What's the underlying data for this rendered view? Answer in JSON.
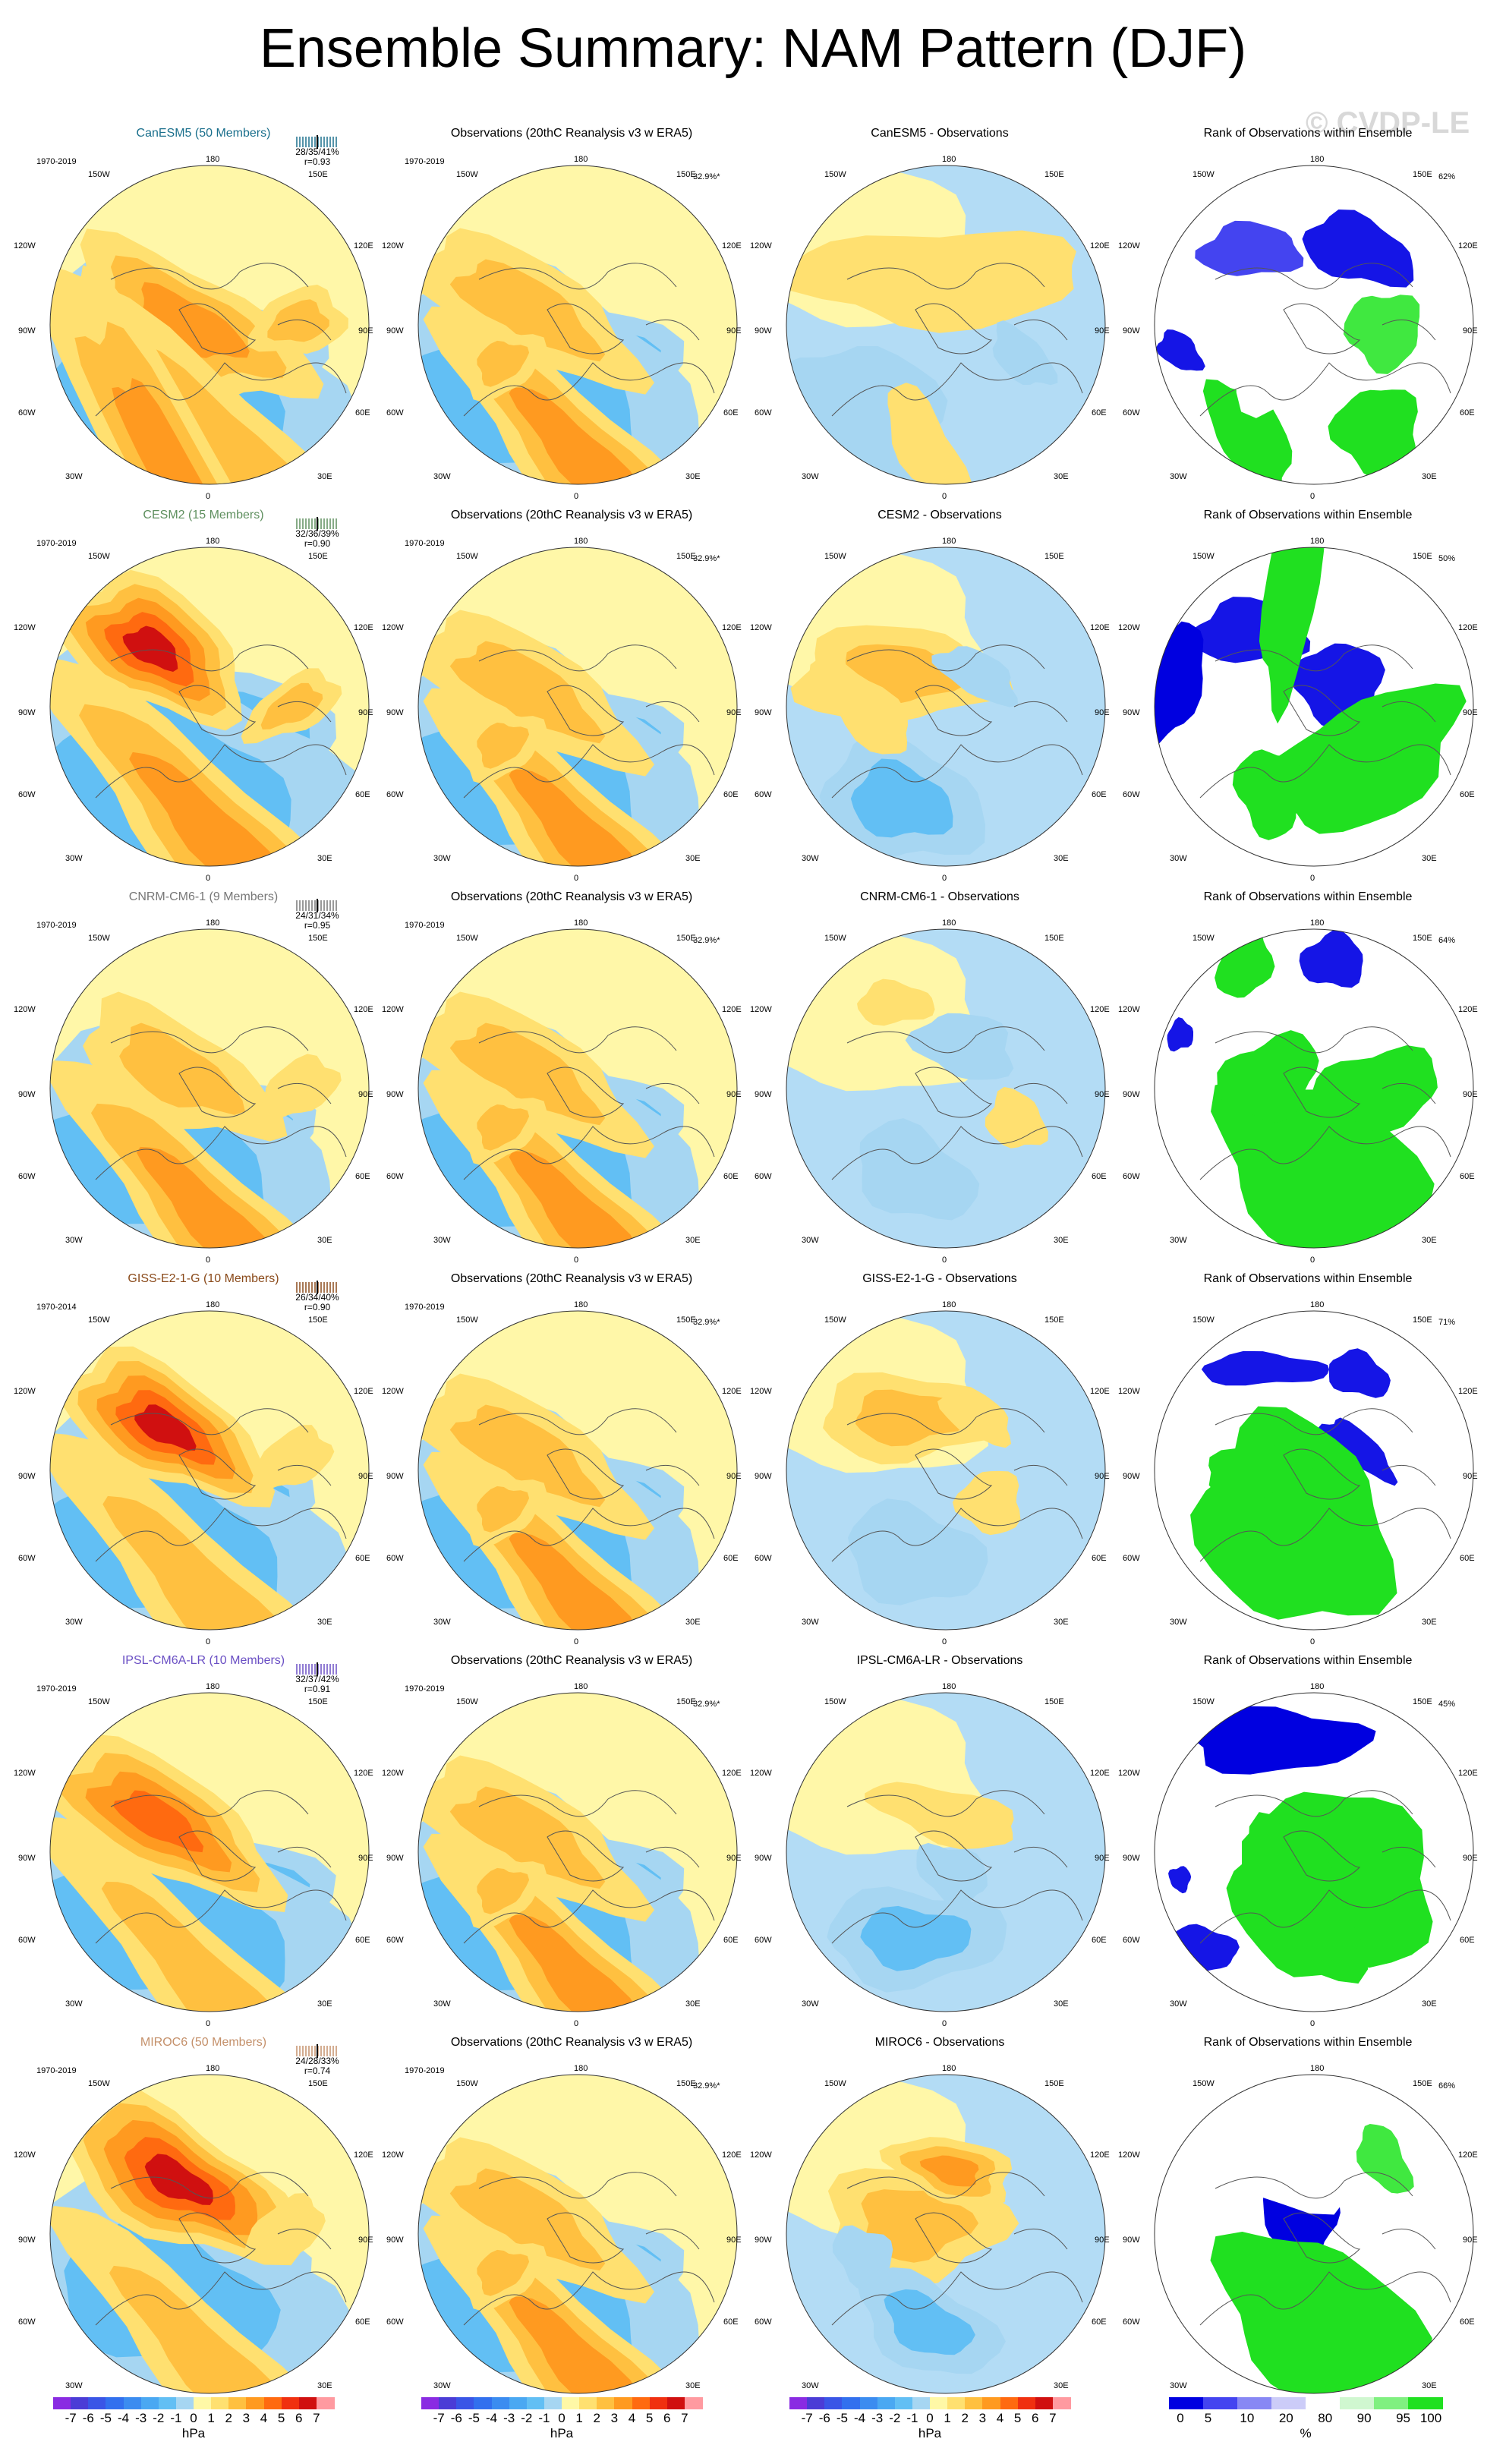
{
  "title": "Ensemble Summary: NAM Pattern (DJF)",
  "watermark": "© CVDP-LE",
  "longitude_labels": [
    "180",
    "150W",
    "150E",
    "120W",
    "120E",
    "90W",
    "90E",
    "60W",
    "60E",
    "30W",
    "30E",
    "0"
  ],
  "obs_title": "Observations (20thC Reanalysis v3 w ERA5)",
  "obs_period": "1970-2019",
  "obs_variance": "32.9%*",
  "rank_title": "Rank of Observations within Ensemble",
  "rows": [
    {
      "model_title": "CanESM5 (50 Members)",
      "model_color": "#1a6f8c",
      "period": "1970-2019",
      "stats": "28/35/41%",
      "r": "r=0.93",
      "diff_title": "CanESM5 - Observations",
      "rank_pct": "62%",
      "model_field": [
        [
          "n",
          125,
          200,
          95,
          70,
          4
        ],
        [
          "n",
          90,
          220,
          150,
          110,
          2
        ],
        [
          "p",
          110,
          150,
          105,
          50,
          3
        ],
        [
          "p",
          125,
          255,
          170,
          55,
          2
        ],
        [
          "p",
          95,
          285,
          190,
          45,
          3
        ],
        [
          "p",
          195,
          148,
          25,
          45,
          2
        ]
      ],
      "obs_field": [
        [
          "n",
          125,
          205,
          85,
          70,
          4
        ],
        [
          "n",
          80,
          220,
          150,
          115,
          2
        ],
        [
          "p",
          85,
          135,
          100,
          45,
          2
        ],
        [
          "p",
          125,
          270,
          150,
          50,
          3
        ],
        [
          "p",
          65,
          185,
          25,
          40,
          2
        ]
      ],
      "diff_field": [
        [
          "p",
          120,
          105,
          115,
          45,
          1
        ],
        [
          "p",
          95,
          110,
          30,
          20,
          1
        ],
        [
          "n",
          60,
          235,
          65,
          65,
          1
        ],
        [
          "n",
          185,
          180,
          30,
          20,
          1
        ],
        [
          "p",
          110,
          265,
          55,
          25,
          1
        ]
      ],
      "rank_field": [
        [
          "b",
          75,
          80,
          40,
          25,
          2
        ],
        [
          "b",
          160,
          80,
          45,
          30,
          3
        ],
        [
          "b",
          20,
          175,
          20,
          15,
          3
        ],
        [
          "g",
          75,
          255,
          50,
          30,
          4
        ],
        [
          "g",
          175,
          250,
          35,
          40,
          4
        ],
        [
          "g",
          180,
          155,
          30,
          35,
          3
        ],
        [
          "w",
          100,
          165,
          55,
          50,
          0
        ]
      ]
    },
    {
      "model_title": "CESM2 (15 Members)",
      "model_color": "#5e8f5e",
      "period": "1970-2019",
      "stats": "32/36/39%",
      "r": "r=0.90",
      "diff_title": "CESM2 - Observations",
      "rank_pct": "50%",
      "model_field": [
        [
          "n",
          130,
          200,
          100,
          80,
          4
        ],
        [
          "n",
          90,
          225,
          160,
          115,
          2
        ],
        [
          "p",
          80,
          95,
          80,
          55,
          5
        ],
        [
          "p",
          125,
          265,
          175,
          55,
          3
        ],
        [
          "p",
          190,
          150,
          20,
          50,
          2
        ]
      ],
      "obs_field": [
        [
          "n",
          125,
          205,
          85,
          70,
          4
        ],
        [
          "n",
          80,
          220,
          150,
          115,
          2
        ],
        [
          "p",
          85,
          135,
          100,
          45,
          2
        ],
        [
          "p",
          125,
          270,
          150,
          50,
          3
        ],
        [
          "p",
          65,
          185,
          25,
          40,
          2
        ]
      ],
      "diff_field": [
        [
          "p",
          85,
          120,
          80,
          45,
          2
        ],
        [
          "n",
          90,
          240,
          65,
          55,
          2
        ],
        [
          "n",
          150,
          120,
          35,
          20,
          1
        ],
        [
          "p",
          60,
          150,
          50,
          25,
          1
        ]
      ],
      "rank_field": [
        [
          "b",
          75,
          80,
          45,
          30,
          3
        ],
        [
          "b",
          15,
          130,
          20,
          60,
          4
        ],
        [
          "b",
          145,
          130,
          35,
          40,
          3
        ],
        [
          "g",
          165,
          200,
          45,
          100,
          4
        ],
        [
          "g",
          90,
          230,
          35,
          30,
          4
        ],
        [
          "g",
          110,
          30,
          100,
          25,
          4
        ]
      ]
    },
    {
      "model_title": "CNRM-CM6-1 (9 Members)",
      "model_color": "#777777",
      "period": "1970-2019",
      "stats": "24/31/34%",
      "r": "r=0.95",
      "diff_title": "CNRM-CM6-1 - Observations",
      "rank_pct": "64%",
      "model_field": [
        [
          "n",
          125,
          210,
          85,
          70,
          4
        ],
        [
          "n",
          80,
          220,
          150,
          110,
          2
        ],
        [
          "p",
          100,
          135,
          85,
          45,
          2
        ],
        [
          "p",
          125,
          270,
          160,
          50,
          3
        ],
        [
          "p",
          195,
          150,
          20,
          40,
          1
        ]
      ],
      "obs_field": [
        [
          "n",
          125,
          205,
          85,
          70,
          4
        ],
        [
          "n",
          80,
          220,
          150,
          115,
          2
        ],
        [
          "p",
          85,
          135,
          100,
          45,
          2
        ],
        [
          "p",
          125,
          270,
          150,
          50,
          3
        ],
        [
          "p",
          65,
          185,
          25,
          40,
          2
        ]
      ],
      "diff_field": [
        [
          "p",
          85,
          70,
          30,
          20,
          1
        ],
        [
          "n",
          140,
          110,
          40,
          30,
          1
        ],
        [
          "n",
          100,
          230,
          50,
          40,
          1
        ],
        [
          "p",
          180,
          180,
          25,
          25,
          1
        ]
      ],
      "rank_field": [
        [
          "b",
          140,
          30,
          25,
          25,
          3
        ],
        [
          "b",
          20,
          100,
          10,
          15,
          3
        ],
        [
          "g",
          130,
          230,
          90,
          75,
          4
        ],
        [
          "g",
          90,
          140,
          30,
          50,
          4
        ],
        [
          "g",
          175,
          150,
          30,
          60,
          4
        ],
        [
          "g",
          70,
          30,
          30,
          25,
          4
        ]
      ]
    },
    {
      "model_title": "GISS-E2-1-G (10 Members)",
      "model_color": "#8a4a1a",
      "period": "1970-2014",
      "stats": "26/34/40%",
      "r": "r=0.90",
      "diff_title": "GISS-E2-1-G - Observations",
      "rank_pct": "71%",
      "model_field": [
        [
          "n",
          120,
          200,
          85,
          70,
          4
        ],
        [
          "n",
          85,
          220,
          155,
          110,
          2
        ],
        [
          "p",
          90,
          110,
          90,
          50,
          5
        ],
        [
          "p",
          125,
          270,
          170,
          50,
          2
        ],
        [
          "p",
          190,
          140,
          20,
          40,
          1
        ]
      ],
      "obs_field": [
        [
          "n",
          125,
          205,
          85,
          70,
          4
        ],
        [
          "n",
          80,
          220,
          150,
          115,
          2
        ],
        [
          "p",
          85,
          135,
          100,
          45,
          2
        ],
        [
          "p",
          125,
          270,
          150,
          50,
          3
        ],
        [
          "p",
          65,
          185,
          25,
          40,
          2
        ]
      ],
      "diff_field": [
        [
          "p",
          95,
          100,
          70,
          40,
          2
        ],
        [
          "n",
          100,
          230,
          55,
          45,
          1
        ],
        [
          "p",
          150,
          100,
          30,
          20,
          1
        ],
        [
          "p",
          160,
          180,
          25,
          30,
          1
        ]
      ],
      "rank_field": [
        [
          "b",
          85,
          55,
          50,
          15,
          3
        ],
        [
          "b",
          160,
          60,
          25,
          20,
          3
        ],
        [
          "b",
          160,
          130,
          35,
          15,
          3
        ],
        [
          "g",
          110,
          200,
          85,
          85,
          4
        ],
        [
          "g",
          80,
          150,
          20,
          50,
          4
        ]
      ]
    },
    {
      "model_title": "IPSL-CM6A-LR (10 Members)",
      "model_color": "#6a4fc4",
      "period": "1970-2019",
      "stats": "32/37/42%",
      "r": "r=0.91",
      "diff_title": "IPSL-CM6A-LR - Observations",
      "rank_pct": "45%",
      "model_field": [
        [
          "n",
          130,
          210,
          100,
          70,
          4
        ],
        [
          "n",
          85,
          220,
          165,
          110,
          2
        ],
        [
          "p",
          85,
          120,
          105,
          50,
          4
        ],
        [
          "p",
          125,
          275,
          175,
          45,
          2
        ]
      ],
      "obs_field": [
        [
          "n",
          125,
          205,
          85,
          70,
          4
        ],
        [
          "n",
          80,
          220,
          150,
          115,
          2
        ],
        [
          "p",
          85,
          135,
          100,
          45,
          2
        ],
        [
          "p",
          125,
          270,
          150,
          50,
          3
        ],
        [
          "p",
          65,
          185,
          25,
          40,
          2
        ]
      ],
      "diff_field": [
        [
          "n",
          100,
          230,
          70,
          45,
          2
        ],
        [
          "p",
          125,
          115,
          60,
          25,
          1
        ],
        [
          "n",
          130,
          170,
          30,
          25,
          1
        ]
      ],
      "rank_field": [
        [
          "b",
          95,
          45,
          70,
          30,
          4
        ],
        [
          "b",
          40,
          240,
          25,
          20,
          3
        ],
        [
          "g",
          150,
          170,
          80,
          70,
          4
        ],
        [
          "g",
          110,
          200,
          70,
          50,
          4
        ],
        [
          "b",
          20,
          175,
          10,
          10,
          3
        ]
      ]
    },
    {
      "model_title": "MIROC6 (50 Members)",
      "model_color": "#c4906a",
      "period": "1970-2019",
      "stats": "24/28/33%",
      "r": "r=0.74",
      "diff_title": "MIROC6 - Observations",
      "rank_pct": "66%",
      "model_field": [
        [
          "n",
          130,
          205,
          80,
          60,
          3
        ],
        [
          "n",
          90,
          210,
          140,
          100,
          2
        ],
        [
          "p",
          100,
          100,
          105,
          55,
          5
        ],
        [
          "p",
          125,
          270,
          160,
          45,
          2
        ],
        [
          "p",
          185,
          145,
          20,
          40,
          1
        ]
      ],
      "obs_field": [
        [
          "n",
          125,
          205,
          85,
          70,
          4
        ],
        [
          "n",
          80,
          220,
          150,
          115,
          2
        ],
        [
          "p",
          85,
          135,
          100,
          45,
          2
        ],
        [
          "p",
          125,
          270,
          150,
          50,
          3
        ],
        [
          "p",
          65,
          185,
          25,
          40,
          2
        ]
      ],
      "diff_field": [
        [
          "p",
          100,
          140,
          70,
          55,
          2
        ],
        [
          "p",
          130,
          90,
          50,
          30,
          3
        ],
        [
          "n",
          110,
          235,
          60,
          40,
          2
        ],
        [
          "n",
          60,
          170,
          25,
          25,
          1
        ]
      ],
      "rank_field": [
        [
          "b",
          115,
          130,
          30,
          45,
          4
        ],
        [
          "w",
          80,
          80,
          70,
          40,
          0
        ],
        [
          "g",
          130,
          235,
          90,
          70,
          4
        ],
        [
          "g",
          180,
          80,
          30,
          20,
          3
        ]
      ]
    }
  ],
  "colorbar_hpa": {
    "labels": [
      "-7",
      "-6",
      "-5",
      "-4",
      "-3",
      "-2",
      "-1",
      "0",
      "1",
      "2",
      "3",
      "4",
      "5",
      "6",
      "7"
    ],
    "unit": "hPa",
    "colors": [
      "#8a2be2",
      "#4b3cd6",
      "#3a55e6",
      "#3270ee",
      "#3b8cf0",
      "#4aa8f2",
      "#62bff4",
      "#a6d6f2",
      "#fff8a6",
      "#ffe070",
      "#ffc040",
      "#ff9a20",
      "#ff6a10",
      "#f03010",
      "#d01010",
      "#ff9aa0"
    ]
  },
  "colorbar_pct": {
    "labels": [
      "0",
      "5",
      "10",
      "20",
      "80",
      "90",
      "95",
      "100"
    ],
    "unit": "%",
    "colors": [
      "#0000e0",
      "#4444f0",
      "#8888f4",
      "#ccccf8",
      "#ffffff",
      "#d0f7d0",
      "#80f080",
      "#20e020"
    ]
  }
}
